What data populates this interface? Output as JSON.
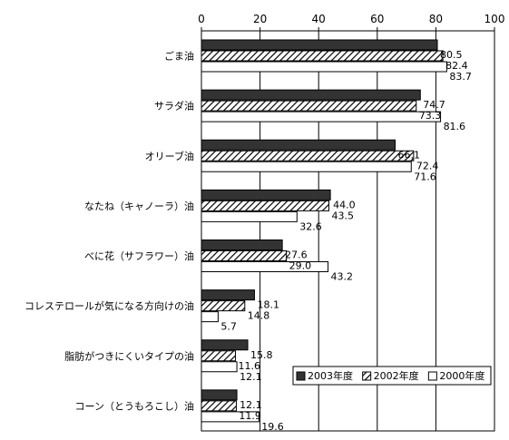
{
  "chart_data": {
    "type": "bar",
    "orientation": "horizontal",
    "categories": [
      "ごま油",
      "サラダ油",
      "オリーブ油",
      "なたね（キャノーラ）油",
      "べに花（サフラワー）油",
      "コレステロールが気になる方向けの油",
      "脂肪がつきにくいタイプの油",
      "コーン（とうもろこし）油"
    ],
    "series": [
      {
        "name": "2003年度",
        "values": [
          80.5,
          74.7,
          66.1,
          44.0,
          27.6,
          18.1,
          15.8,
          12.1
        ],
        "labels": [
          "80.5",
          "74.7",
          "66.1",
          "44.0",
          "27.6",
          "18.1",
          "15.8",
          "12.1"
        ],
        "color": "#333333",
        "pattern": "solid"
      },
      {
        "name": "2002年度",
        "values": [
          82.4,
          73.3,
          72.4,
          43.5,
          29.0,
          14.8,
          11.6,
          11.9
        ],
        "labels": [
          "82.4",
          "73.3",
          "72.4",
          "43.5",
          "29.0",
          "14.8",
          "11.6",
          "11.9"
        ],
        "color": "#000000",
        "pattern": "hatch"
      },
      {
        "name": "2000年度",
        "values": [
          83.7,
          81.6,
          71.6,
          32.6,
          43.2,
          5.7,
          12.1,
          19.6
        ],
        "labels": [
          "83.7",
          "81.6",
          "71.6",
          "32.6",
          "43.2",
          "5.7",
          "12.1",
          "19.6"
        ],
        "color": "#ffffff",
        "pattern": "open"
      }
    ],
    "xlim": [
      0,
      100
    ],
    "xticks": [
      0,
      20,
      40,
      60,
      80,
      100
    ],
    "xtick_labels": [
      "0",
      "20",
      "40",
      "60",
      "80",
      "100"
    ],
    "grid": true,
    "legend_position": "bottom-right",
    "title": "",
    "xlabel": "",
    "ylabel": ""
  }
}
